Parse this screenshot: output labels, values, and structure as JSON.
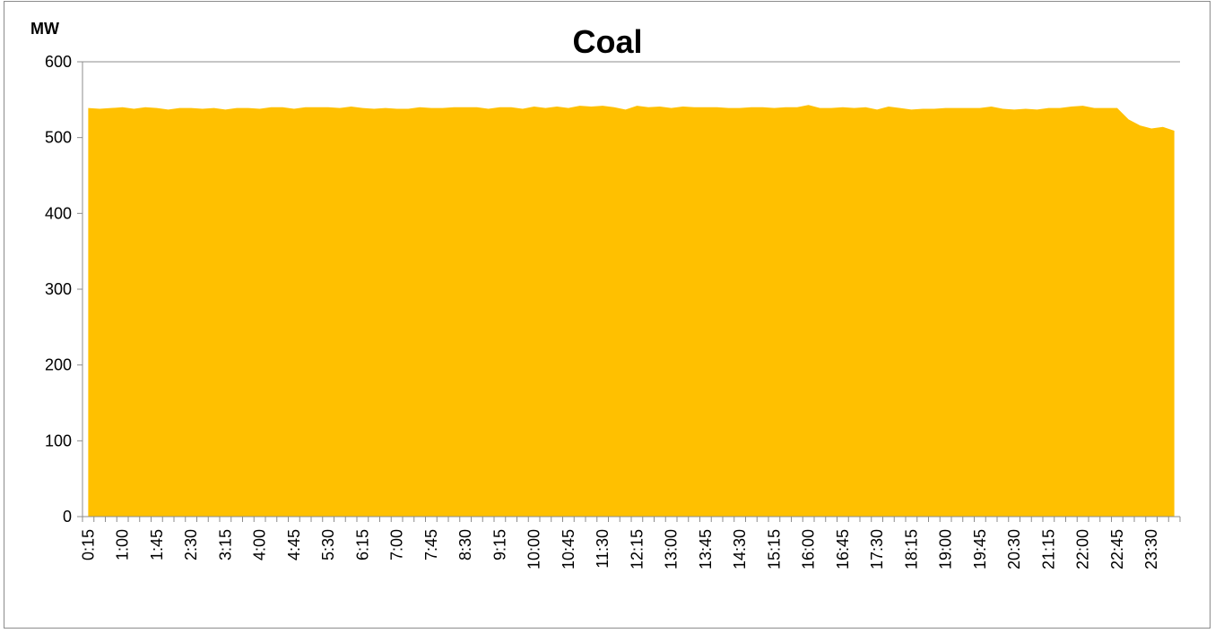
{
  "chart_data": {
    "type": "area",
    "title": "Coal",
    "ylabel": "MW",
    "xlabel": "",
    "ylim": [
      0,
      600
    ],
    "yticks": [
      0,
      100,
      200,
      300,
      400,
      500,
      600
    ],
    "x_labels": [
      "0:15",
      "1:00",
      "1:45",
      "2:30",
      "3:15",
      "4:00",
      "4:45",
      "5:30",
      "6:15",
      "7:00",
      "7:45",
      "8:30",
      "9:15",
      "10:00",
      "10:45",
      "11:30",
      "12:15",
      "13:00",
      "13:45",
      "14:30",
      "15:15",
      "16:00",
      "16:45",
      "17:30",
      "18:15",
      "19:00",
      "19:45",
      "20:30",
      "21:15",
      "22:00",
      "22:45",
      "23:30"
    ],
    "x": [
      "0:15",
      "0:30",
      "0:45",
      "1:00",
      "1:15",
      "1:30",
      "1:45",
      "2:00",
      "2:15",
      "2:30",
      "2:45",
      "3:00",
      "3:15",
      "3:30",
      "3:45",
      "4:00",
      "4:15",
      "4:30",
      "4:45",
      "5:00",
      "5:15",
      "5:30",
      "5:45",
      "6:00",
      "6:15",
      "6:30",
      "6:45",
      "7:00",
      "7:15",
      "7:30",
      "7:45",
      "8:00",
      "8:15",
      "8:30",
      "8:45",
      "9:00",
      "9:15",
      "9:30",
      "9:45",
      "10:00",
      "10:15",
      "10:30",
      "10:45",
      "11:00",
      "11:15",
      "11:30",
      "11:45",
      "12:00",
      "12:15",
      "12:30",
      "12:45",
      "13:00",
      "13:15",
      "13:30",
      "13:45",
      "14:00",
      "14:15",
      "14:30",
      "14:45",
      "15:00",
      "15:15",
      "15:30",
      "15:45",
      "16:00",
      "16:15",
      "16:30",
      "16:45",
      "17:00",
      "17:15",
      "17:30",
      "17:45",
      "18:00",
      "18:15",
      "18:30",
      "18:45",
      "19:00",
      "19:15",
      "19:30",
      "19:45",
      "20:00",
      "20:15",
      "20:30",
      "20:45",
      "21:00",
      "21:15",
      "21:30",
      "21:45",
      "22:00",
      "22:15",
      "22:30",
      "22:45",
      "23:00",
      "23:15",
      "23:30",
      "23:45",
      "24:00"
    ],
    "series": [
      {
        "values": [
          539,
          538,
          539,
          540,
          538,
          540,
          539,
          537,
          539,
          539,
          538,
          539,
          537,
          539,
          539,
          538,
          540,
          540,
          538,
          540,
          540,
          540,
          539,
          541,
          539,
          538,
          539,
          538,
          538,
          540,
          539,
          539,
          540,
          540,
          540,
          538,
          540,
          540,
          538,
          541,
          539,
          541,
          539,
          542,
          541,
          542,
          540,
          537,
          542,
          540,
          541,
          539,
          541,
          540,
          540,
          540,
          539,
          539,
          540,
          540,
          539,
          540,
          540,
          543,
          539,
          539,
          540,
          539,
          540,
          537,
          541,
          539,
          537,
          538,
          538,
          539,
          539,
          539,
          539,
          541,
          538,
          537,
          538,
          537,
          539,
          539,
          541,
          542,
          539,
          539,
          539,
          524,
          516,
          512,
          514,
          509
        ],
        "color": "#FFC000"
      }
    ]
  }
}
